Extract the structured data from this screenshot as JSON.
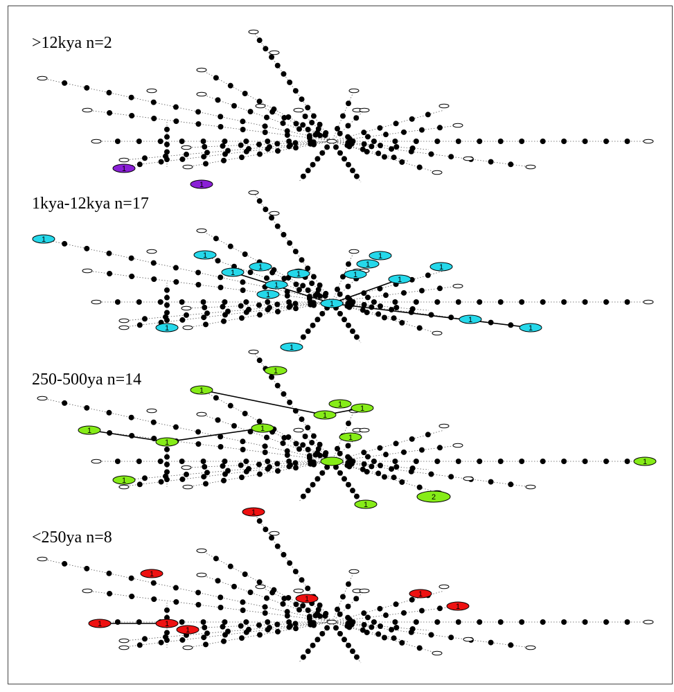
{
  "figure": {
    "panels": [
      {
        "label": ">12kya n=2",
        "color": "#8a1fd6"
      },
      {
        "label": "1kya-12kya n=17",
        "color": "#25d8ea"
      },
      {
        "label": "250-500ya n=14",
        "color": "#86ec18"
      },
      {
        "label": "<250ya n=8",
        "color": "#ee1111"
      }
    ],
    "node_labels": [
      "1",
      "2"
    ],
    "colors": {
      "edge": "#555555",
      "mutation_dot": "#000000",
      "empty_node": "#ffffff",
      "border": "#444444"
    }
  }
}
